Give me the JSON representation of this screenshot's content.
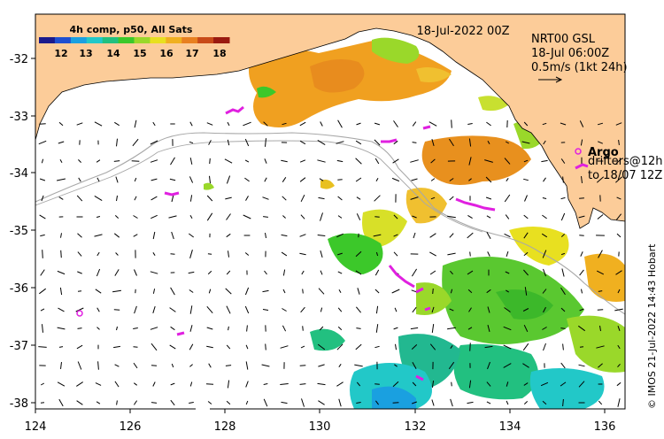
{
  "map": {
    "date_label": "18-Jul-2022 00Z",
    "colorbar": {
      "title": "4h comp, p50, All Sats",
      "ticks": [
        "12",
        "13",
        "14",
        "15",
        "16",
        "17",
        "18"
      ],
      "colors": [
        "#1a1a8c",
        "#1f4fd0",
        "#1aa0e0",
        "#22c8c8",
        "#22c080",
        "#3cc82a",
        "#9ad82a",
        "#e8e020",
        "#f0b020",
        "#e88020",
        "#c84a18",
        "#9a1a10"
      ]
    },
    "current_info": {
      "line1": "NRT00 GSL",
      "line2": "18-Jul 06:00Z",
      "line3": "0.5m/s (1kt 24h)"
    },
    "legend": {
      "argo_label": "Argo",
      "drifters_label": "drifters@12h",
      "drifters_sub": "to 18/07 12Z"
    },
    "credit": "© IMOS 21-Jul-2022 14:43 Hobart",
    "x_ticks": [
      "124",
      "126",
      "128",
      "130",
      "132",
      "134",
      "136"
    ],
    "y_ticks": [
      "-32",
      "-33",
      "-34",
      "-35",
      "-36",
      "-37",
      "-38"
    ],
    "colors": {
      "land": "#fccc99",
      "frame": "#000000",
      "argo": "#e020e0",
      "drifter": "#e020e0",
      "shelf": "#a8a8a8"
    }
  }
}
